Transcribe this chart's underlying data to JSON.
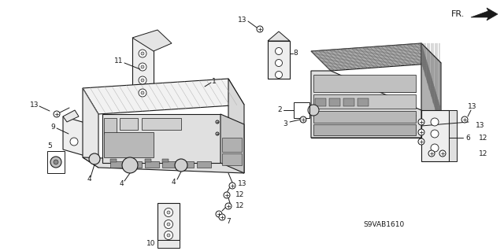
{
  "background_color": "#ffffff",
  "diagram_code": "S9VAB1610",
  "line_color": "#1a1a1a",
  "label_fontsize": 6.5,
  "figsize": [
    6.4,
    3.19
  ],
  "dpi": 100,
  "parts": {
    "main_unit": "1",
    "radio_front": "2",
    "knob_small": "3",
    "knob_large": "4",
    "button": "5",
    "right_bracket": "6",
    "bolt7": "7",
    "bracket8": "8",
    "bracket9": "9",
    "bracket10": "10",
    "bracket11": "11",
    "bolt12": "12",
    "bolt13": "13"
  }
}
